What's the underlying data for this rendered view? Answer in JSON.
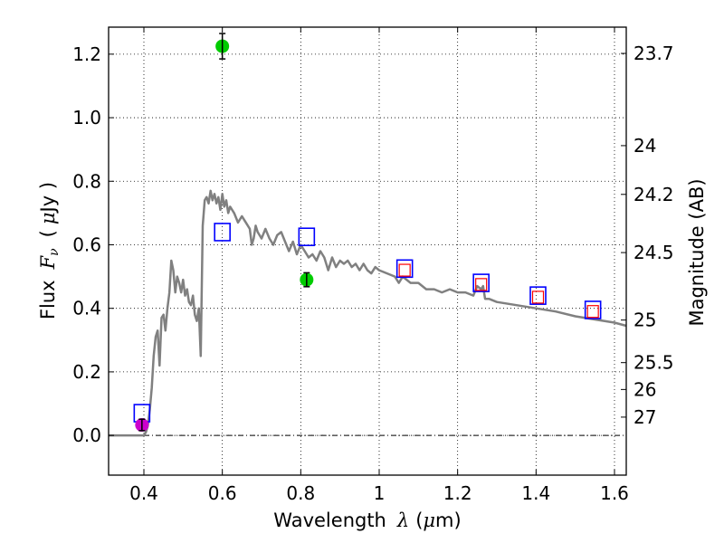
{
  "chart_data": {
    "type": "scatter",
    "title": "",
    "xlabel": "Wavelength",
    "xlabel_symbol": "λ",
    "xlabel_unit_open": "(",
    "xlabel_unit_mu": "μ",
    "xlabel_unit_tail": "m)",
    "ylabel": "Flux",
    "ylabel_symbol": "F",
    "ylabel_subscript": "ν",
    "ylabel_unit_open": "(",
    "ylabel_unit_mu": "μ",
    "ylabel_unit_tail": "Jy )",
    "y2label": "Magnitude (AB)",
    "xlim": [
      0.31,
      1.63
    ],
    "ylim": [
      -0.125,
      1.285
    ],
    "grid": true,
    "x_ticks": [
      {
        "value": 0.4,
        "label": "0.4"
      },
      {
        "value": 0.6,
        "label": "0.6"
      },
      {
        "value": 0.8,
        "label": "0.8"
      },
      {
        "value": 1.0,
        "label": "1"
      },
      {
        "value": 1.2,
        "label": "1.2"
      },
      {
        "value": 1.4,
        "label": "1.4"
      },
      {
        "value": 1.6,
        "label": "1.6"
      }
    ],
    "y_ticks": [
      {
        "value": 0.0,
        "label": "0.0"
      },
      {
        "value": 0.2,
        "label": "0.2"
      },
      {
        "value": 0.4,
        "label": "0.4"
      },
      {
        "value": 0.6,
        "label": "0.6"
      },
      {
        "value": 0.8,
        "label": "0.8"
      },
      {
        "value": 1.0,
        "label": "1.0"
      },
      {
        "value": 1.2,
        "label": "1.2"
      }
    ],
    "y2_ticks": [
      {
        "value": 23.7,
        "label": "23.7"
      },
      {
        "value": 24.0,
        "label": "24"
      },
      {
        "value": 24.2,
        "label": "24.2"
      },
      {
        "value": 24.5,
        "label": "24.5"
      },
      {
        "value": 25.0,
        "label": "25"
      },
      {
        "value": 25.5,
        "label": "25.5"
      },
      {
        "value": 26.0,
        "label": "26"
      },
      {
        "value": 27.0,
        "label": "27"
      }
    ],
    "template_sed": {
      "color": "#808080",
      "x": [
        0.31,
        0.4,
        0.405,
        0.41,
        0.415,
        0.42,
        0.425,
        0.43,
        0.435,
        0.44,
        0.445,
        0.45,
        0.455,
        0.46,
        0.465,
        0.47,
        0.475,
        0.48,
        0.485,
        0.49,
        0.495,
        0.5,
        0.505,
        0.51,
        0.515,
        0.52,
        0.525,
        0.53,
        0.535,
        0.54,
        0.545,
        0.55,
        0.555,
        0.56,
        0.565,
        0.57,
        0.575,
        0.58,
        0.585,
        0.59,
        0.595,
        0.6,
        0.605,
        0.61,
        0.615,
        0.62,
        0.63,
        0.64,
        0.65,
        0.66,
        0.67,
        0.675,
        0.68,
        0.685,
        0.69,
        0.7,
        0.71,
        0.72,
        0.73,
        0.74,
        0.75,
        0.76,
        0.77,
        0.78,
        0.79,
        0.8,
        0.81,
        0.82,
        0.83,
        0.84,
        0.85,
        0.86,
        0.87,
        0.88,
        0.89,
        0.9,
        0.91,
        0.92,
        0.93,
        0.94,
        0.95,
        0.96,
        0.97,
        0.98,
        0.99,
        1.0,
        1.02,
        1.04,
        1.05,
        1.06,
        1.07,
        1.08,
        1.1,
        1.12,
        1.14,
        1.16,
        1.18,
        1.2,
        1.22,
        1.24,
        1.25,
        1.26,
        1.265,
        1.27,
        1.28,
        1.3,
        1.35,
        1.4,
        1.45,
        1.5,
        1.55,
        1.6,
        1.63
      ],
      "y": [
        0.0,
        0.0,
        0.01,
        0.03,
        0.08,
        0.15,
        0.25,
        0.31,
        0.33,
        0.22,
        0.37,
        0.38,
        0.33,
        0.4,
        0.45,
        0.55,
        0.52,
        0.45,
        0.5,
        0.48,
        0.45,
        0.49,
        0.44,
        0.46,
        0.42,
        0.41,
        0.44,
        0.38,
        0.36,
        0.4,
        0.25,
        0.66,
        0.74,
        0.75,
        0.73,
        0.77,
        0.74,
        0.76,
        0.73,
        0.75,
        0.71,
        0.76,
        0.72,
        0.74,
        0.7,
        0.72,
        0.7,
        0.67,
        0.69,
        0.67,
        0.65,
        0.6,
        0.62,
        0.66,
        0.64,
        0.62,
        0.65,
        0.62,
        0.6,
        0.63,
        0.64,
        0.61,
        0.58,
        0.61,
        0.57,
        0.6,
        0.58,
        0.56,
        0.57,
        0.55,
        0.58,
        0.56,
        0.52,
        0.56,
        0.53,
        0.55,
        0.54,
        0.55,
        0.53,
        0.54,
        0.52,
        0.54,
        0.52,
        0.51,
        0.53,
        0.52,
        0.51,
        0.5,
        0.48,
        0.5,
        0.49,
        0.48,
        0.48,
        0.46,
        0.46,
        0.45,
        0.46,
        0.45,
        0.45,
        0.44,
        0.47,
        0.46,
        0.47,
        0.43,
        0.43,
        0.42,
        0.41,
        0.4,
        0.39,
        0.375,
        0.365,
        0.355,
        0.345
      ]
    },
    "model_photometry": {
      "color": "#0000ff",
      "x": [
        0.395,
        0.6,
        0.815,
        1.065,
        1.26,
        1.405,
        1.545
      ],
      "y": [
        0.07,
        0.64,
        0.625,
        0.525,
        0.48,
        0.44,
        0.395
      ]
    },
    "observed_small_squares": {
      "color": "#ff0000",
      "x": [
        1.065,
        1.26,
        1.405,
        1.545
      ],
      "y": [
        0.52,
        0.475,
        0.435,
        0.39
      ]
    },
    "observed_detections": {
      "color": "#00cc00",
      "points": [
        {
          "x": 0.6,
          "y": 1.225,
          "err": 0.04
        },
        {
          "x": 0.815,
          "y": 0.49,
          "err": 0.022
        }
      ]
    },
    "observed_uband": {
      "color": "#cc00cc",
      "x": 0.395,
      "y": 0.033,
      "err": 0.018
    }
  }
}
